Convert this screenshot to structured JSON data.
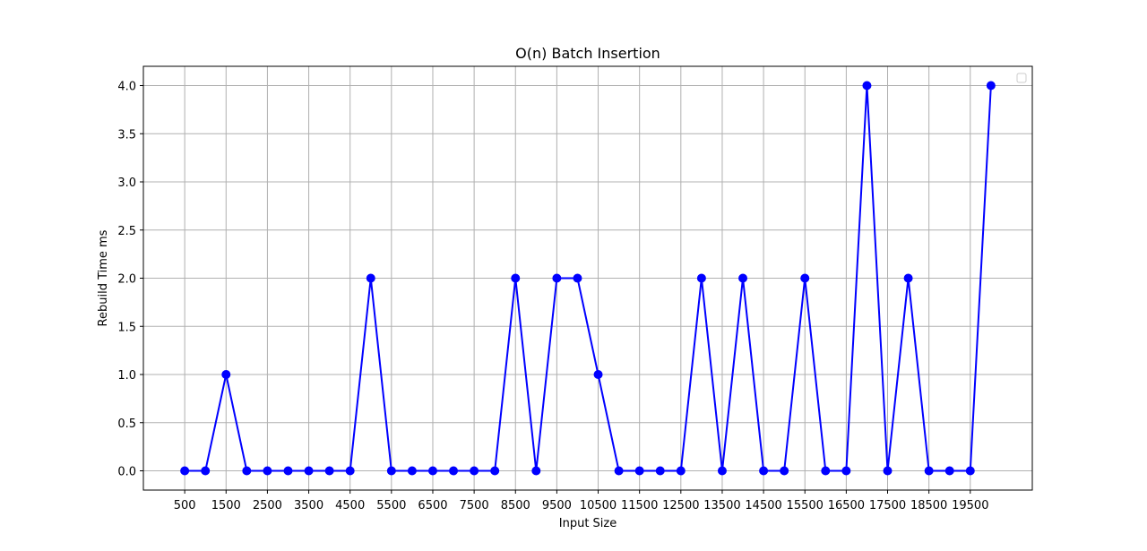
{
  "chart_data": {
    "type": "line",
    "title": "O(n) Batch Insertion",
    "xlabel": "Input Size",
    "ylabel": "Rebuild Time ms",
    "x_ticks": [
      500,
      1500,
      2500,
      3500,
      4500,
      5500,
      6500,
      7500,
      8500,
      9500,
      10500,
      11500,
      12500,
      13500,
      14500,
      15500,
      16500,
      17500,
      18500,
      19500
    ],
    "y_ticks": [
      0.0,
      0.5,
      1.0,
      1.5,
      2.0,
      2.5,
      3.0,
      3.5,
      4.0
    ],
    "xlim": [
      -500,
      21000
    ],
    "ylim": [
      -0.2,
      4.2
    ],
    "grid": true,
    "legend": "top-right (empty)",
    "series": [
      {
        "color": "#0000ff",
        "marker": "circle",
        "x": [
          500,
          1000,
          1500,
          2000,
          2500,
          3000,
          3500,
          4000,
          4500,
          5000,
          5500,
          6000,
          6500,
          7000,
          7500,
          8000,
          8500,
          9000,
          9500,
          10000,
          10500,
          11000,
          11500,
          12000,
          12500,
          13000,
          13500,
          14000,
          14500,
          15000,
          15500,
          16000,
          16500,
          17000,
          17500,
          18000,
          18500,
          19000,
          19500,
          20000
        ],
        "y": [
          0,
          0,
          1,
          0,
          0,
          0,
          0,
          0,
          0,
          2,
          0,
          0,
          0,
          0,
          0,
          0,
          2,
          0,
          2,
          2,
          1,
          0,
          0,
          0,
          0,
          2,
          0,
          2,
          0,
          0,
          2,
          0,
          0,
          4,
          0,
          2,
          0,
          0,
          0,
          4
        ]
      }
    ]
  }
}
